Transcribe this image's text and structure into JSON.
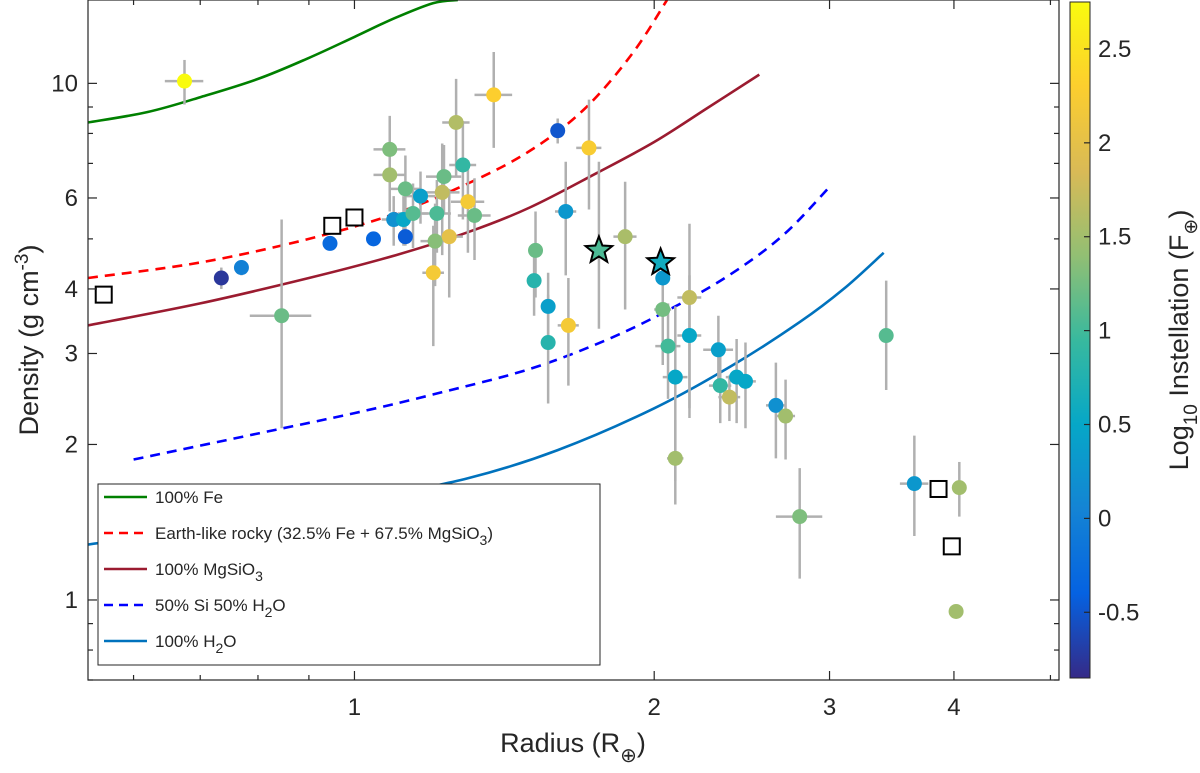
{
  "chart_data": {
    "type": "scatter",
    "xlabel": "Radius (R⊕)",
    "xlabel_main": "Radius (R",
    "xlabel_sub": "⊕",
    "xlabel_close": ")",
    "ylabel": "Density (g cm-3)",
    "ylabel_main": "Density (g cm",
    "ylabel_sup": "-3",
    "ylabel_close": ")",
    "x_scale": "log",
    "y_scale": "log",
    "xlim": [
      0.54,
      5.1
    ],
    "ylim": [
      0.7,
      14.5
    ],
    "x_ticks": [
      {
        "value": 1,
        "label": "1"
      },
      {
        "value": 2,
        "label": "2"
      },
      {
        "value": 3,
        "label": "3"
      },
      {
        "value": 4,
        "label": "4"
      }
    ],
    "y_ticks": [
      {
        "value": 1,
        "label": "1"
      },
      {
        "value": 2,
        "label": "2"
      },
      {
        "value": 3,
        "label": "3"
      },
      {
        "value": 4,
        "label": "4"
      },
      {
        "value": 6,
        "label": "6"
      },
      {
        "value": 10,
        "label": "10"
      }
    ],
    "grid": false,
    "legend_position": "bottom-left",
    "colorbar": {
      "label": "Log10 Instellation (F⊕)",
      "label_log": "Log",
      "label_sub": "10",
      "label_main": " Instellation (F",
      "label_sym": "⊕",
      "label_close": ")",
      "range": [
        -0.85,
        2.75
      ],
      "colormap": "parula",
      "ticks": [
        {
          "value": -0.5,
          "label": "-0.5"
        },
        {
          "value": 0,
          "label": "0"
        },
        {
          "value": 0.5,
          "label": "0.5"
        },
        {
          "value": 1,
          "label": "1"
        },
        {
          "value": 1.5,
          "label": "1.5"
        },
        {
          "value": 2,
          "label": "2"
        },
        {
          "value": 2.5,
          "label": "2.5"
        }
      ]
    },
    "series": [
      {
        "id": "fe",
        "name": "100% Fe",
        "color": "#008000",
        "dash": "solid",
        "x": [
          0.54,
          0.62,
          0.7,
          0.8,
          0.9,
          1.0,
          1.1,
          1.2,
          1.27
        ],
        "y": [
          8.4,
          8.8,
          9.4,
          10.2,
          11.2,
          12.3,
          13.4,
          14.3,
          14.5
        ]
      },
      {
        "id": "earth",
        "name": "Earth-like rocky (32.5% Fe + 67.5% MgSiO3)",
        "name_main": "Earth-like rocky (32.5% Fe + 67.5% MgSiO",
        "name_sub": "3",
        "name_close": ")",
        "color": "#ff0000",
        "dash": "dashed",
        "x": [
          0.54,
          0.7,
          0.9,
          1.1,
          1.3,
          1.5,
          1.7,
          1.9,
          2.06
        ],
        "y": [
          4.2,
          4.5,
          5.0,
          5.6,
          6.4,
          7.4,
          8.9,
          11.4,
          14.5
        ]
      },
      {
        "id": "mgsio3",
        "name": "100% MgSiO3",
        "name_main": "100% MgSiO",
        "name_sub": "3",
        "name_close": "",
        "color": "#9b1b30",
        "dash": "solid",
        "x": [
          0.54,
          0.7,
          0.9,
          1.1,
          1.3,
          1.5,
          1.75,
          2.0,
          2.25,
          2.55
        ],
        "y": [
          3.4,
          3.75,
          4.2,
          4.65,
          5.15,
          5.75,
          6.7,
          7.7,
          8.9,
          10.4
        ]
      },
      {
        "id": "si_h2o",
        "name": "50% Si 50% H2O",
        "name_main": "50% Si 50% H",
        "name_sub": "2",
        "name_close": "O",
        "color": "#0000ff",
        "dash": "dashed",
        "x": [
          0.6,
          0.8,
          1.0,
          1.2,
          1.5,
          1.8,
          2.1,
          2.4,
          2.7,
          3.0
        ],
        "y": [
          1.87,
          2.1,
          2.3,
          2.5,
          2.8,
          3.2,
          3.7,
          4.3,
          5.1,
          6.3
        ]
      },
      {
        "id": "h2o",
        "name": "100% H2O",
        "name_main": "100% H",
        "name_sub": "2",
        "name_close": "O",
        "color": "#0072bd",
        "dash": "solid",
        "x": [
          0.54,
          0.8,
          1.0,
          1.3,
          1.6,
          2.0,
          2.4,
          2.8,
          3.1,
          3.4
        ],
        "y": [
          1.28,
          1.43,
          1.55,
          1.72,
          1.95,
          2.35,
          2.85,
          3.45,
          4.0,
          4.7
        ]
      }
    ],
    "planets": [
      {
        "x": 0.675,
        "y": 10.1,
        "c": 2.75,
        "xe": [
          0.03,
          0.03
        ],
        "ye": [
          1.0,
          1.0
        ]
      },
      {
        "x": 0.735,
        "y": 4.2,
        "c": -0.75,
        "xe": [
          0.0,
          0.0
        ],
        "ye": [
          0.2,
          0.2
        ]
      },
      {
        "x": 0.77,
        "y": 4.4,
        "c": 0.0,
        "xe": [
          0.0,
          0.0
        ],
        "ye": [
          0.15,
          0.15
        ]
      },
      {
        "x": 0.845,
        "y": 3.55,
        "c": 1.2,
        "xe": [
          0.06,
          0.06
        ],
        "ye": [
          1.4,
          1.9
        ]
      },
      {
        "x": 0.945,
        "y": 4.9,
        "c": -0.3,
        "xe": [
          0.0,
          0.0
        ],
        "ye": [
          0.15,
          0.15
        ]
      },
      {
        "x": 1.045,
        "y": 5.0,
        "c": -0.35,
        "xe": [
          0.0,
          0.0
        ],
        "ye": [
          0.15,
          0.15
        ]
      },
      {
        "x": 1.085,
        "y": 7.45,
        "c": 1.3,
        "xe": [
          0.04,
          0.04
        ],
        "ye": [
          1.2,
          1.2
        ]
      },
      {
        "x": 1.085,
        "y": 6.65,
        "c": 1.5,
        "xe": [
          0.04,
          0.04
        ],
        "ye": [
          1.0,
          1.0
        ]
      },
      {
        "x": 1.095,
        "y": 5.45,
        "c": 0.2,
        "xe": [
          0.03,
          0.03
        ],
        "ye": [
          0.6,
          0.6
        ]
      },
      {
        "x": 1.12,
        "y": 5.45,
        "c": 0.5,
        "xe": [
          0.03,
          0.03
        ],
        "ye": [
          0.6,
          0.6
        ]
      },
      {
        "x": 1.125,
        "y": 6.25,
        "c": 1.2,
        "xe": [
          0.04,
          0.04
        ],
        "ye": [
          1.0,
          1.0
        ]
      },
      {
        "x": 1.125,
        "y": 5.05,
        "c": -0.45,
        "xe": [
          0.0,
          0.0
        ],
        "ye": [
          0.2,
          0.2
        ]
      },
      {
        "x": 1.145,
        "y": 5.6,
        "c": 1.1,
        "xe": [
          0.04,
          0.04
        ],
        "ye": [
          0.8,
          0.8
        ]
      },
      {
        "x": 1.165,
        "y": 6.05,
        "c": 0.4,
        "xe": [
          0.04,
          0.04
        ],
        "ye": [
          0.7,
          0.7
        ]
      },
      {
        "x": 1.2,
        "y": 4.3,
        "c": 2.2,
        "xe": [
          0.03,
          0.03
        ],
        "ye": [
          1.2,
          1.0
        ]
      },
      {
        "x": 1.205,
        "y": 4.95,
        "c": 1.35,
        "xe": [
          0.04,
          0.04
        ],
        "ye": [
          0.9,
          0.9
        ]
      },
      {
        "x": 1.21,
        "y": 5.6,
        "c": 1.05,
        "xe": [
          0.04,
          0.04
        ],
        "ye": [
          0.9,
          0.9
        ]
      },
      {
        "x": 1.225,
        "y": 6.15,
        "c": 1.7,
        "xe": [
          0.05,
          0.05
        ],
        "ye": [
          1.5,
          1.5
        ]
      },
      {
        "x": 1.23,
        "y": 6.6,
        "c": 1.2,
        "xe": [
          0.05,
          0.05
        ],
        "ye": [
          1.0,
          1.0
        ]
      },
      {
        "x": 1.245,
        "y": 5.05,
        "c": 2.0,
        "xe": [
          0.04,
          0.04
        ],
        "ye": [
          1.2,
          1.2
        ]
      },
      {
        "x": 1.265,
        "y": 8.4,
        "c": 1.6,
        "xe": [
          0.04,
          0.04
        ],
        "ye": [
          1.8,
          1.8
        ]
      },
      {
        "x": 1.285,
        "y": 6.95,
        "c": 0.9,
        "xe": [
          0.04,
          0.04
        ],
        "ye": [
          1.5,
          1.5
        ]
      },
      {
        "x": 1.3,
        "y": 5.9,
        "c": 2.2,
        "xe": [
          0.05,
          0.05
        ],
        "ye": [
          1.2,
          1.2
        ]
      },
      {
        "x": 1.32,
        "y": 5.55,
        "c": 1.2,
        "xe": [
          0.05,
          0.05
        ],
        "ye": [
          1.0,
          1.0
        ]
      },
      {
        "x": 1.38,
        "y": 9.5,
        "c": 2.3,
        "xe": [
          0.06,
          0.06
        ],
        "ye": [
          2.0,
          2.0
        ]
      },
      {
        "x": 1.52,
        "y": 4.75,
        "c": 1.2,
        "xe": [
          0.0,
          0.0
        ],
        "ye": [
          0.9,
          0.9
        ]
      },
      {
        "x": 1.515,
        "y": 4.15,
        "c": 0.8,
        "xe": [
          0.0,
          0.0
        ],
        "ye": [
          0.6,
          0.6
        ]
      },
      {
        "x": 1.565,
        "y": 3.7,
        "c": 0.4,
        "xe": [
          0.0,
          0.0
        ],
        "ye": [
          0.6,
          0.6
        ]
      },
      {
        "x": 1.565,
        "y": 3.15,
        "c": 0.8,
        "xe": [
          0.0,
          0.0
        ],
        "ye": [
          0.75,
          0.75
        ]
      },
      {
        "x": 1.6,
        "y": 8.1,
        "c": -0.5,
        "xe": [
          0.02,
          0.02
        ],
        "ye": [
          0.45,
          0.45
        ]
      },
      {
        "x": 1.63,
        "y": 5.65,
        "c": 0.3,
        "xe": [
          0.04,
          0.04
        ],
        "ye": [
          1.4,
          1.4
        ]
      },
      {
        "x": 1.64,
        "y": 3.4,
        "c": 2.2,
        "xe": [
          0.04,
          0.04
        ],
        "ye": [
          0.8,
          0.8
        ]
      },
      {
        "x": 1.72,
        "y": 7.5,
        "c": 2.25,
        "xe": [
          0.05,
          0.05
        ],
        "ye": [
          1.8,
          1.8
        ]
      },
      {
        "x": 1.87,
        "y": 5.05,
        "c": 1.55,
        "xe": [
          0.05,
          0.05
        ],
        "ye": [
          1.4,
          1.4
        ]
      },
      {
        "x": 2.04,
        "y": 4.2,
        "c": 0.3,
        "xe": [
          0.0,
          0.0
        ],
        "ye": [
          0.2,
          0.2
        ]
      },
      {
        "x": 2.04,
        "y": 3.65,
        "c": 1.25,
        "xe": [
          0.04,
          0.04
        ],
        "ye": [
          0.8,
          0.8
        ]
      },
      {
        "x": 2.065,
        "y": 3.1,
        "c": 1.0,
        "xe": [
          0.06,
          0.06
        ],
        "ye": [
          0.65,
          0.65
        ]
      },
      {
        "x": 2.1,
        "y": 2.7,
        "c": 0.5,
        "xe": [
          0.06,
          0.06
        ],
        "ye": [
          1.0,
          1.0
        ]
      },
      {
        "x": 2.1,
        "y": 1.88,
        "c": 1.5,
        "xe": [
          0.04,
          0.04
        ],
        "ye": [
          0.35,
          0.35
        ]
      },
      {
        "x": 2.17,
        "y": 3.85,
        "c": 1.7,
        "xe": [
          0.06,
          0.06
        ],
        "ye": [
          1.5,
          1.5
        ]
      },
      {
        "x": 2.17,
        "y": 3.25,
        "c": 0.5,
        "xe": [
          0.06,
          0.06
        ],
        "ye": [
          1.0,
          1.0
        ]
      },
      {
        "x": 2.32,
        "y": 3.05,
        "c": 0.4,
        "xe": [
          0.08,
          0.08
        ],
        "ye": [
          0.5,
          0.5
        ]
      },
      {
        "x": 2.33,
        "y": 2.6,
        "c": 0.9,
        "xe": [
          0.06,
          0.06
        ],
        "ye": [
          0.4,
          0.4
        ]
      },
      {
        "x": 2.38,
        "y": 2.47,
        "c": 1.7,
        "xe": [
          0.06,
          0.06
        ],
        "ye": [
          0.25,
          0.25
        ]
      },
      {
        "x": 2.42,
        "y": 2.7,
        "c": 0.5,
        "xe": [
          0.06,
          0.06
        ],
        "ye": [
          0.5,
          0.5
        ]
      },
      {
        "x": 2.47,
        "y": 2.65,
        "c": 0.5,
        "xe": [
          0.06,
          0.06
        ],
        "ye": [
          0.5,
          0.5
        ]
      },
      {
        "x": 2.65,
        "y": 2.38,
        "c": 0.2,
        "xe": [
          0.06,
          0.06
        ],
        "ye": [
          0.5,
          0.5
        ]
      },
      {
        "x": 2.71,
        "y": 2.27,
        "c": 1.5,
        "xe": [
          0.06,
          0.06
        ],
        "ye": [
          0.4,
          0.4
        ]
      },
      {
        "x": 2.8,
        "y": 1.45,
        "c": 1.3,
        "xe": [
          0.15,
          0.15
        ],
        "ye": [
          0.35,
          0.35
        ]
      },
      {
        "x": 3.42,
        "y": 3.25,
        "c": 1.1,
        "xe": [
          0.05,
          0.05
        ],
        "ye": [
          0.7,
          0.9
        ]
      },
      {
        "x": 3.65,
        "y": 1.68,
        "c": 0.3,
        "xe": [
          0.12,
          0.12
        ],
        "ye": [
          0.35,
          0.4
        ]
      },
      {
        "x": 4.05,
        "y": 1.65,
        "c": 1.5,
        "xe": [
          0.05,
          0.05
        ],
        "ye": [
          0.2,
          0.2
        ]
      },
      {
        "x": 4.02,
        "y": 0.95,
        "c": 1.5,
        "xe": [
          0.05,
          0.05
        ],
        "ye": [
          0.0,
          0.0
        ]
      }
    ],
    "highlighted": [
      {
        "x": 1.76,
        "y": 4.75,
        "c": 1.05,
        "xe": [
          0.02,
          0.02
        ],
        "ye": [
          1.4,
          2.3
        ]
      },
      {
        "x": 2.03,
        "y": 4.5,
        "c": 0.6,
        "xe": [
          0.0,
          0.0
        ],
        "ye": [
          0.0,
          0.0
        ]
      }
    ],
    "solar_system": [
      {
        "x": 0.56,
        "y": 3.9
      },
      {
        "x": 0.95,
        "y": 5.3
      },
      {
        "x": 1.0,
        "y": 5.5
      },
      {
        "x": 3.86,
        "y": 1.64
      },
      {
        "x": 3.98,
        "y": 1.27
      }
    ]
  }
}
